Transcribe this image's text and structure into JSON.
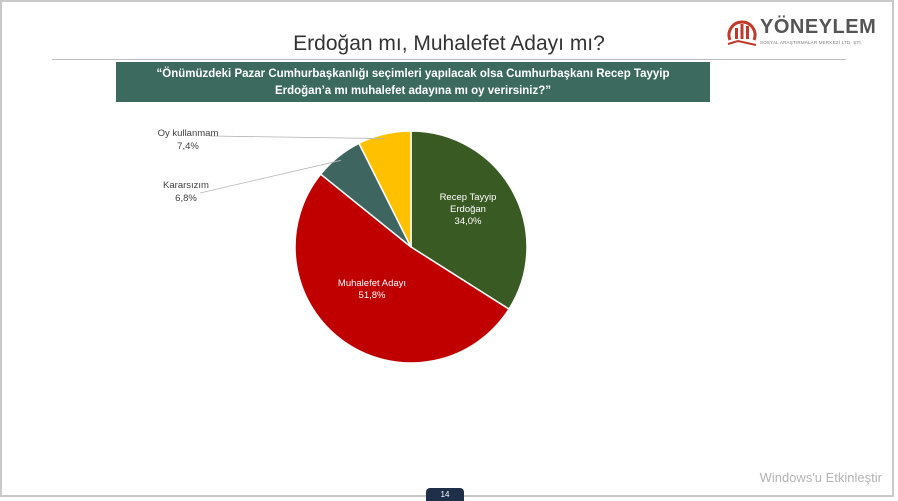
{
  "header": {
    "logo_text": "YÖNEYLEM",
    "logo_subtext": "SOSYAL ARAŞTIRMALAR MERKEZİ LTD. ŞTİ."
  },
  "title": "Erdoğan mı, Muhalefet Adayı mı?",
  "question": {
    "line1": "“Önümüzdeki Pazar Cumhurbaşkanlığı seçimleri yapılacak olsa Cumhurbaşkanı Recep Tayyip",
    "line2": "Erdoğan’a mı muhalefet adayına mı oy verirsiniz?”"
  },
  "chart_data": {
    "type": "pie",
    "title": "",
    "slices": [
      {
        "label": "Recep Tayyip Erdoğan",
        "value": 34.0,
        "value_label": "34,0%",
        "color": "#3a5a24"
      },
      {
        "label": "Muhalefet Adayı",
        "value": 51.8,
        "value_label": "51,8%",
        "color": "#c00000"
      },
      {
        "label": "Kararsızım",
        "value": 6.8,
        "value_label": "6,8%",
        "color": "#3f6560"
      },
      {
        "label": "Oy kullanmam",
        "value": 7.4,
        "value_label": "7,4%",
        "color": "#ffc000"
      }
    ]
  },
  "footer": {
    "watermark": "Windows'u Etkinleştir",
    "page_number": "14"
  }
}
